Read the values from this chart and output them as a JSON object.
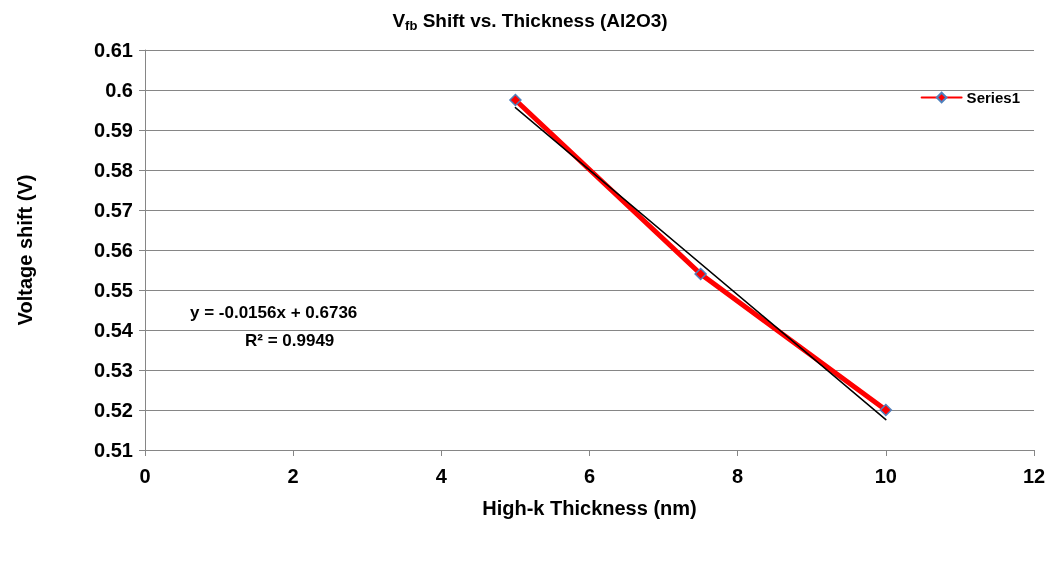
{
  "chart_data": {
    "type": "line",
    "title": "V$_{fb}$ Shift vs. Thickness (Al2O3)",
    "xlabel": "High-k Thickness (nm)",
    "ylabel": "Voltage shift (V)",
    "x": [
      5,
      7.5,
      10
    ],
    "series": [
      {
        "name": "Series1",
        "color": "#ff0000",
        "values": [
          0.5975,
          0.554,
          0.52
        ],
        "marker": "diamond",
        "line_style": "solid"
      },
      {
        "type": "line",
        "color": "#000000",
        "x": [
          5,
          10
        ],
        "values": [
          0.5956,
          0.5176
        ],
        "marker": "none",
        "line_style": "solid"
      }
    ],
    "xlim": [
      0,
      12
    ],
    "xticks": [
      0,
      2,
      4,
      6,
      8,
      10,
      12
    ],
    "ylim": [
      0.51,
      0.61
    ],
    "yticks": [
      0.51,
      0.52,
      0.53,
      0.54,
      0.55,
      0.56,
      0.57,
      0.58,
      0.59,
      0.6,
      0.61
    ],
    "grid": "y",
    "legend": "top right",
    "annotations": [
      "y = -0.0156x + 0.6736",
      "R² = 0.9949"
    ]
  }
}
